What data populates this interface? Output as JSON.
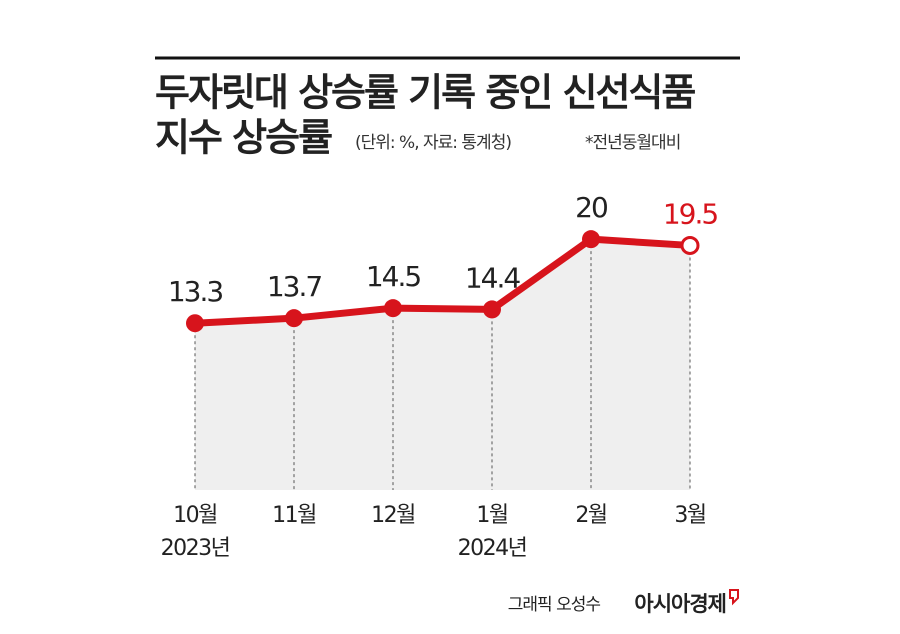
{
  "chart_data": {
    "type": "line",
    "title": "두자릿대 상승률 기록 중인 신선식품",
    "title_line2": "지수 상승률",
    "subtitle": "(단위: %, 자료: 통계청)",
    "note": "*전년동월대비",
    "categories": [
      "10월",
      "11월",
      "12월",
      "1월",
      "2월",
      "3월"
    ],
    "year_labels": [
      "2023년",
      null,
      null,
      "2024년",
      null,
      null
    ],
    "series": [
      {
        "name": "신선식품지수 상승률",
        "color": "#d7141c",
        "values": [
          13.3,
          13.7,
          14.5,
          14.4,
          20,
          19.5
        ]
      }
    ],
    "ylim": [
      0,
      24
    ],
    "credit": "그래픽 오성수",
    "source_brand": "아시아경제"
  }
}
